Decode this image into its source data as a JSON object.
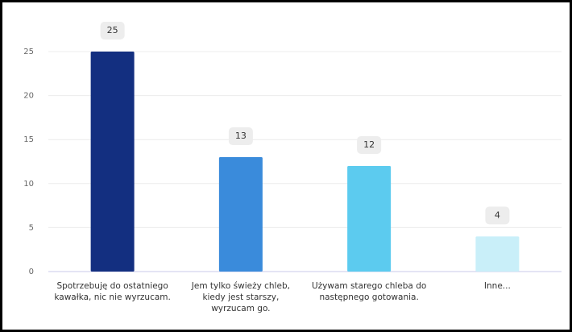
{
  "chart_data": {
    "type": "bar",
    "categories": [
      "Spotrzebuję do ostatniego kawałka, nic nie wyrzucam.",
      "Jem tylko świeży chleb, kiedy jest starszy, wyrzucam go.",
      "Używam starego chleba do następnego gotowania.",
      "Inne..."
    ],
    "values": [
      25,
      13,
      12,
      4
    ],
    "colors": [
      "#132f80",
      "#3a8bdb",
      "#5ccbef",
      "#c9eff9"
    ],
    "ylim": [
      0,
      25
    ],
    "yticks": [
      0,
      5,
      10,
      15,
      20,
      25
    ],
    "grid": true
  }
}
